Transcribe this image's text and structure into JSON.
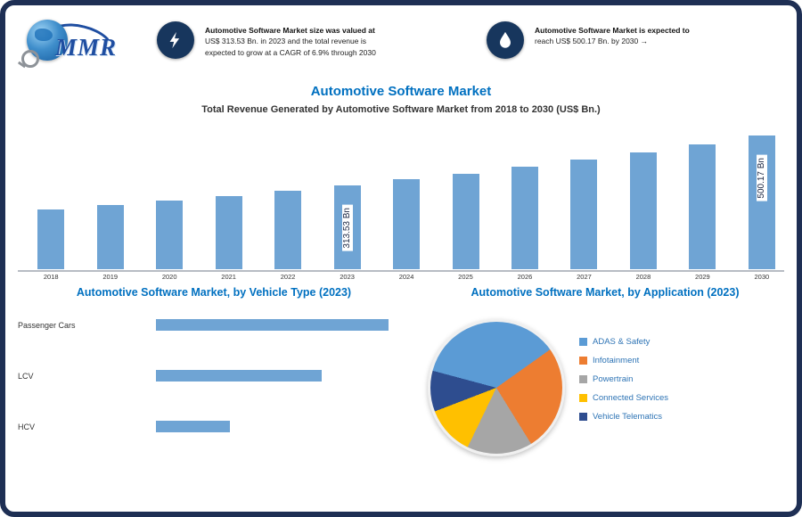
{
  "logo": {
    "text": "MMR"
  },
  "header": {
    "items": [
      {
        "icon": "bolt-icon",
        "lines": [
          "Automotive Software Market size was valued at",
          "US$ 313.53 Bn. in 2023 and the total revenue is",
          "expected to grow at a CAGR of 6.9% through 2030"
        ]
      },
      {
        "icon": "drop-icon",
        "lines": [
          "Automotive Software Market is expected to",
          "reach US$ 500.17 Bn. by 2030 →"
        ]
      }
    ]
  },
  "title": "Automotive Software Market",
  "subtitle": "Total Revenue Generated by Automotive Software Market from 2018 to 2030 (US$ Bn.)",
  "colors": {
    "accent": "#0070c0",
    "bar": "#6fa4d4",
    "frame": "#1e2f54",
    "icon_bg": "#17365d"
  },
  "chart_data": [
    {
      "type": "bar",
      "title": "Total Revenue Generated by Automotive Software Market from 2018 to 2030 (US$ Bn.)",
      "categories": [
        "2018",
        "2019",
        "2020",
        "2021",
        "2022",
        "2023",
        "2024",
        "2025",
        "2026",
        "2027",
        "2028",
        "2029",
        "2030"
      ],
      "values": [
        224.6,
        240.1,
        256.7,
        274.4,
        293.3,
        313.53,
        335.2,
        358.3,
        383.0,
        409.5,
        437.7,
        467.9,
        500.17
      ],
      "ylabel": "US$ Bn.",
      "ylim": [
        0,
        520
      ],
      "bar_color": "#6fa4d4",
      "data_labels": [
        {
          "index": 5,
          "text": "313.53 Bn"
        },
        {
          "index": 12,
          "text": "500.17 Bn"
        }
      ]
    },
    {
      "type": "bar",
      "orientation": "horizontal",
      "title": "Automotive Software Market, by Vehicle Type (2023)",
      "categories": [
        "Passenger Cars",
        "LCV",
        "HCV"
      ],
      "values": [
        63,
        45,
        20
      ],
      "xlim": [
        0,
        70
      ],
      "bar_color": "#6fa4d4"
    },
    {
      "type": "pie",
      "title": "Automotive Software Market, by Application (2023)",
      "start_angle": 285,
      "legend_position": "right",
      "slices": [
        {
          "label": "ADAS & Safety",
          "color": "#5b9bd5",
          "value": 36
        },
        {
          "label": "Infotainment",
          "color": "#ed7d31",
          "value": 26
        },
        {
          "label": "Powertrain",
          "color": "#a6a6a6",
          "value": 16
        },
        {
          "label": "Connected Services",
          "color": "#ffc000",
          "value": 12
        },
        {
          "label": "Vehicle Telematics",
          "color": "#2e4d8f",
          "value": 10
        }
      ]
    }
  ]
}
